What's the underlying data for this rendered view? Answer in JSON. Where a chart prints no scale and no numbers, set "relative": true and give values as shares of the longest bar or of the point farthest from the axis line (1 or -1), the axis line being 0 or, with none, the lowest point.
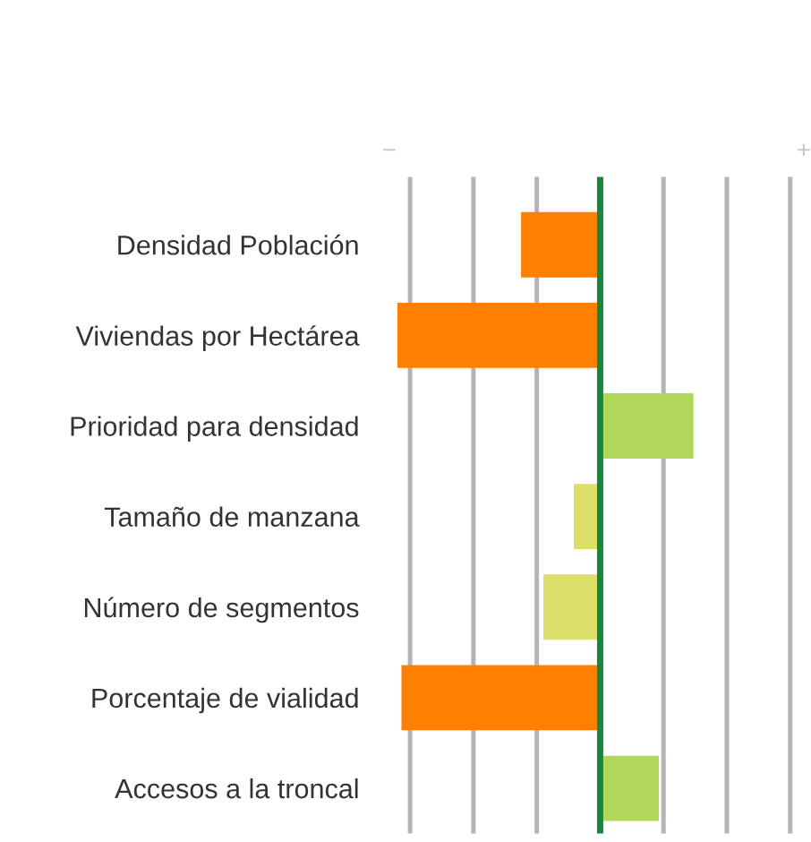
{
  "chart_data": {
    "type": "bar",
    "orientation": "horizontal",
    "relative": true,
    "categories": [
      "Densidad Población",
      "Viviendas por Hectárea",
      "Prioridad para densidad",
      "Tamaño de manzana",
      "Número de segmentos",
      "Porcentaje de vialidad",
      "Accesos a la troncal"
    ],
    "values": [
      -0.39,
      -1,
      0.46,
      -0.13,
      -0.28,
      -0.98,
      0.29
    ],
    "colors": [
      "#ff7f00",
      "#ff7f00",
      "#b0d65a",
      "#dede6a",
      "#dede6a",
      "#ff7f00",
      "#b0d65a"
    ],
    "grid": "x",
    "ref_lines": [
      {
        "axis": "x",
        "value": 0,
        "color": "#13883a"
      }
    ],
    "annotations": [
      "−",
      "+"
    ]
  }
}
